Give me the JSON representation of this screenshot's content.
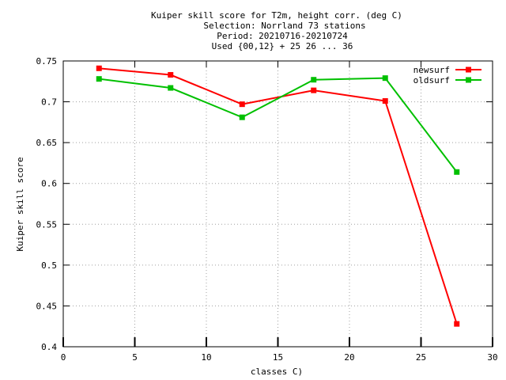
{
  "chart_data": {
    "type": "line",
    "title_lines": [
      "Kuiper skill score  for T2m, height corr. (deg C)",
      "Selection: Norrland     73 stations",
      "Period: 20210716-20210724",
      "Used {00,12} + 25 26 ... 36"
    ],
    "xlabel": "classes C)",
    "ylabel": "Kuiper skill score",
    "xlim": [
      0,
      30
    ],
    "ylim": [
      0.4,
      0.75
    ],
    "xticks": [
      0,
      5,
      10,
      15,
      20,
      25,
      30
    ],
    "xtick_labels": [
      "0",
      "5",
      "10",
      "15",
      "20",
      "25",
      "30"
    ],
    "yticks": [
      0.4,
      0.45,
      0.5,
      0.55,
      0.6,
      0.65,
      0.7,
      0.75
    ],
    "ytick_labels": [
      "0.4",
      "0.45",
      "0.5",
      "0.55",
      "0.6",
      "0.65",
      "0.7",
      "0.75"
    ],
    "grid": true,
    "legend_position": "top-right",
    "x": [
      2.5,
      7.5,
      12.5,
      17.5,
      22.5,
      27.5
    ],
    "series": [
      {
        "name": "newsurf",
        "color": "#ff0000",
        "values": [
          0.741,
          0.733,
          0.697,
          0.714,
          0.701,
          0.428
        ]
      },
      {
        "name": "oldsurf",
        "color": "#00c000",
        "values": [
          0.728,
          0.717,
          0.681,
          0.727,
          0.729,
          0.614
        ]
      }
    ]
  }
}
